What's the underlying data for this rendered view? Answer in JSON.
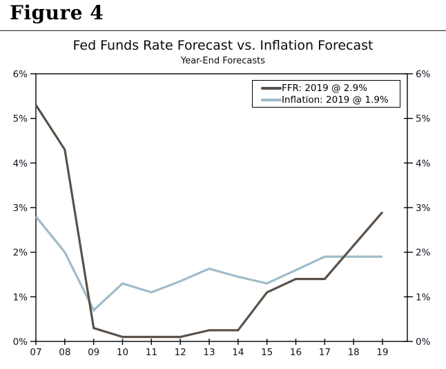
{
  "figure": {
    "label": "Figure 4"
  },
  "chart": {
    "title": "Fed Funds Rate Forecast vs. Inflation Forecast",
    "subtitle": "Year-End Forecasts",
    "legend": [
      {
        "label": "FFR: 2019 @ 2.9%",
        "color": "#5b5047"
      },
      {
        "label": "Inflation: 2019 @ 1.9%",
        "color": "#9fbbc9"
      }
    ]
  },
  "colors": {
    "ffr_line": "#5b5047",
    "inflation_line": "#9fbbc9",
    "axis": "#000000",
    "tick_label": "#10101e"
  },
  "chart_data": {
    "type": "line",
    "title": "Fed Funds Rate Forecast vs. Inflation Forecast",
    "subtitle": "Year-End Forecasts",
    "categories": [
      "07",
      "08",
      "09",
      "10",
      "11",
      "12",
      "13",
      "14",
      "15",
      "16",
      "17",
      "18",
      "19"
    ],
    "series": [
      {
        "name": "FFR: 2019 @ 2.9%",
        "color": "#5b5047",
        "values": [
          5.3,
          4.3,
          0.3,
          0.1,
          0.1,
          0.1,
          0.25,
          0.25,
          1.1,
          1.4,
          1.4,
          2.15,
          2.9
        ]
      },
      {
        "name": "Inflation: 2019 @ 1.9%",
        "color": "#9fbbc9",
        "values": [
          2.8,
          2.0,
          0.7,
          1.3,
          1.1,
          1.35,
          1.63,
          1.45,
          1.3,
          1.6,
          1.9,
          1.9,
          1.9
        ]
      }
    ],
    "xlabel": "",
    "ylabel": "",
    "ylim": [
      0,
      6
    ],
    "yticks": [
      0,
      1,
      2,
      3,
      4,
      5,
      6
    ],
    "ytick_labels": [
      "0%",
      "1%",
      "2%",
      "3%",
      "4%",
      "5%",
      "6%"
    ],
    "y_axis_sides": "both",
    "grid": false,
    "legend_position": "top-right"
  }
}
